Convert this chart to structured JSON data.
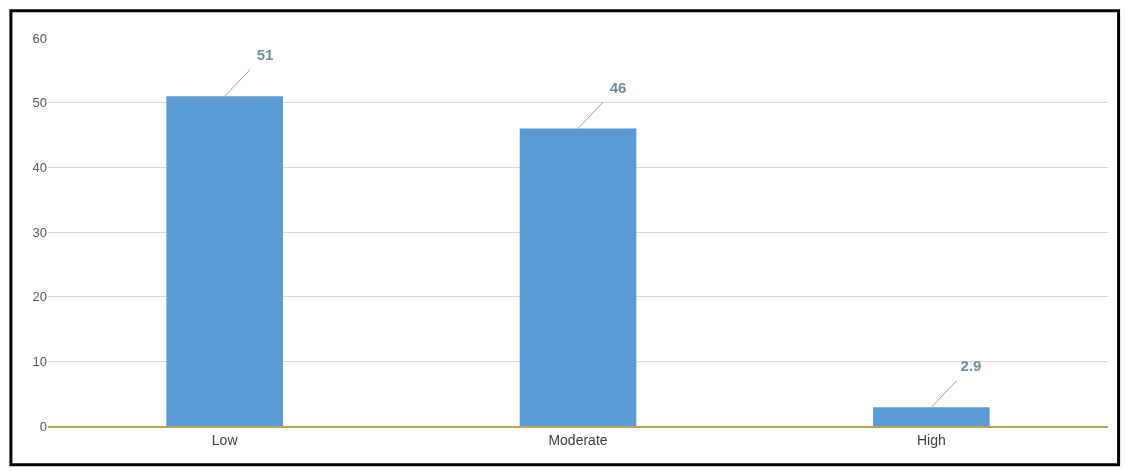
{
  "chart_data": {
    "type": "bar",
    "categories": [
      "Low",
      "Moderate",
      "High"
    ],
    "values": [
      51,
      46,
      2.9
    ],
    "color": "#5b9bd5",
    "ylim": [
      0,
      60
    ],
    "yticks": [
      0,
      10,
      20,
      30,
      40,
      50,
      60
    ],
    "grid": "y",
    "data_labels": true,
    "legend": false
  }
}
